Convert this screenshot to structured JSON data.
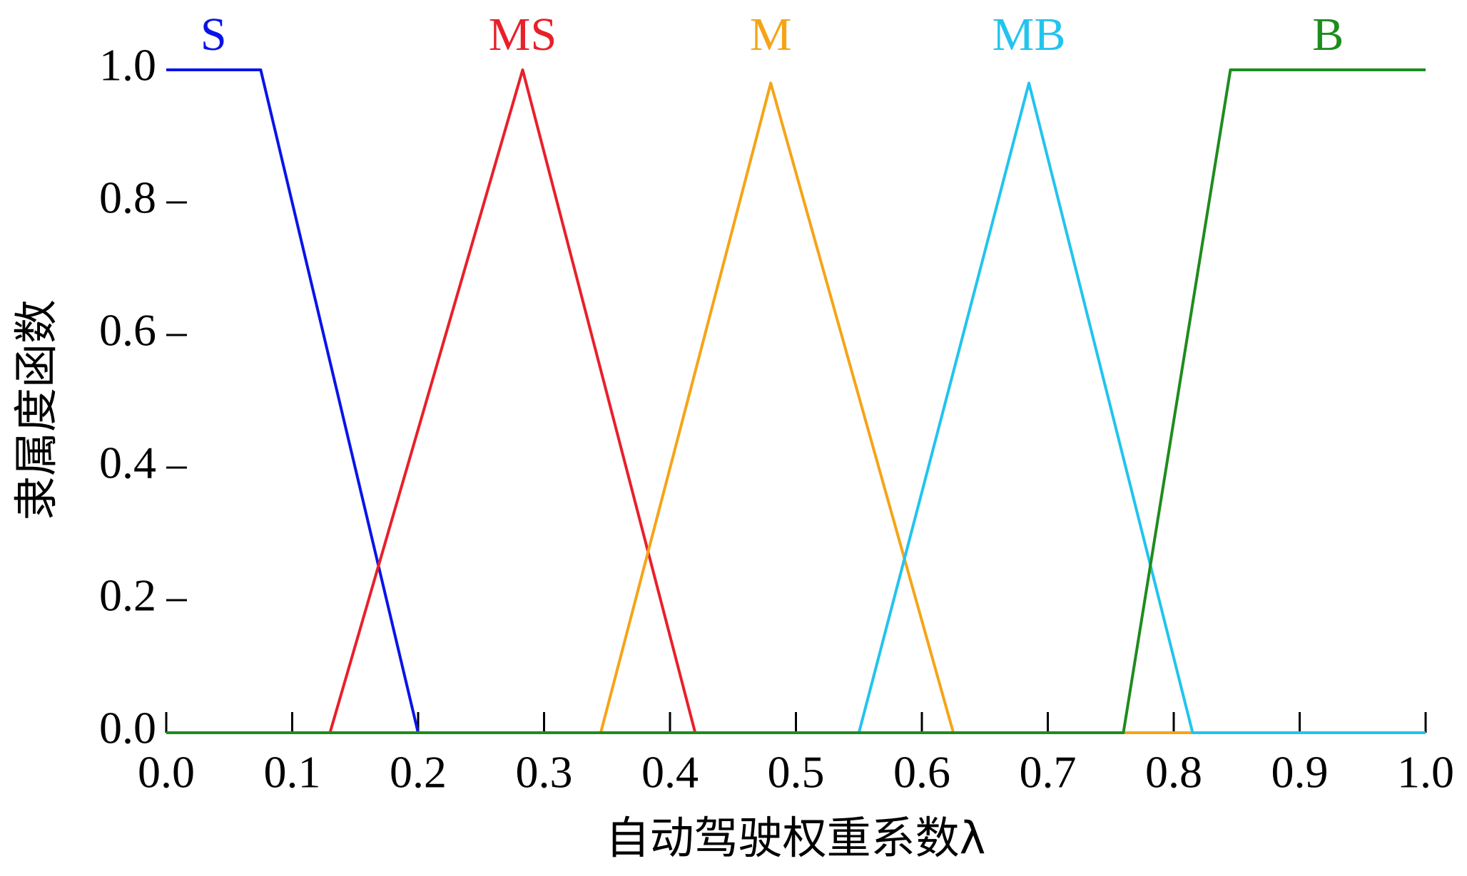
{
  "chart_data": {
    "type": "line",
    "x_label": "自动驾驶权重系数λ",
    "y_label": "隶属度函数",
    "xlim": [
      0,
      1
    ],
    "ylim": [
      0,
      1
    ],
    "xticks": [
      {
        "value": 0,
        "label": "0.0"
      },
      0.1,
      0.2,
      0.3,
      0.4,
      0.5,
      0.6,
      0.7,
      0.8,
      0.9,
      {
        "value": 1,
        "label": "1.0"
      }
    ],
    "yticks": [
      {
        "value": 0,
        "label": "0.0"
      },
      0.2,
      0.4,
      0.6,
      0.8,
      {
        "value": 1,
        "label": "1.0"
      }
    ],
    "series": [
      {
        "name": "S",
        "color": "#0a14e6",
        "x": [
          0,
          0.075,
          0.2,
          1
        ],
        "values": [
          1,
          1,
          0,
          0
        ]
      },
      {
        "name": "MS",
        "color": "#e8202a",
        "x": [
          0,
          0.13,
          0.283,
          0.42,
          1
        ],
        "values": [
          0,
          0,
          1,
          0,
          0
        ]
      },
      {
        "name": "M",
        "color": "#f5a418",
        "x": [
          0,
          0.345,
          0.48,
          0.625,
          1
        ],
        "values": [
          0,
          0,
          0.98,
          0,
          0
        ]
      },
      {
        "name": "MB",
        "color": "#22c4ee",
        "x": [
          0,
          0.55,
          0.685,
          0.815,
          1
        ],
        "values": [
          0,
          0,
          0.98,
          0,
          0
        ]
      },
      {
        "name": "B",
        "color": "#1e8c1e",
        "x": [
          0,
          0.76,
          0.845,
          1
        ],
        "values": [
          0,
          0,
          1,
          1
        ]
      }
    ]
  }
}
